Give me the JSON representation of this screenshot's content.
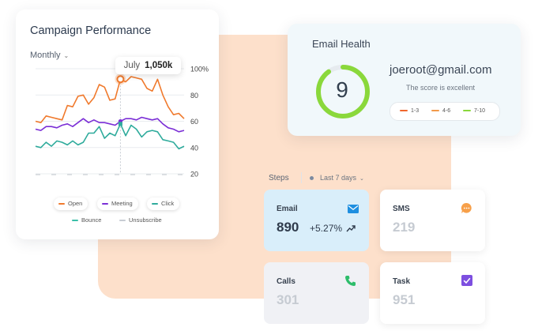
{
  "campaign": {
    "title": "Campaign Performance",
    "period": "Monthly",
    "tooltip_month": "July",
    "tooltip_value": "1,050k",
    "legend": [
      {
        "name": "Open",
        "color": "#f07a2d"
      },
      {
        "name": "Meeting",
        "color": "#7b2fd6"
      },
      {
        "name": "Click",
        "color": "#2fab9c"
      },
      {
        "name": "Bounce",
        "color": "#3bbfa8"
      },
      {
        "name": "Unsubscribe",
        "color": "#c7ccd3"
      }
    ]
  },
  "chart_data": {
    "type": "line",
    "y_ticks": [
      "100%",
      "80",
      "60",
      "40",
      "20"
    ],
    "ylim": [
      20,
      100
    ],
    "series": [
      {
        "name": "Open",
        "color": "#f07a2d",
        "values": [
          60,
          59,
          64,
          63,
          62,
          61,
          72,
          71,
          79,
          80,
          73,
          78,
          88,
          86,
          76,
          77,
          92,
          90,
          94,
          93,
          92,
          85,
          83,
          92,
          80,
          71,
          65,
          66,
          62
        ]
      },
      {
        "name": "Meeting",
        "color": "#7b2fd6",
        "values": [
          54,
          53,
          56,
          56,
          55,
          57,
          58,
          56,
          59,
          62,
          59,
          61,
          59,
          59,
          58,
          57,
          60,
          62,
          62,
          61,
          63,
          62,
          61,
          62,
          58,
          55,
          54,
          52,
          53
        ]
      },
      {
        "name": "Click",
        "color": "#2fab9c",
        "values": [
          41,
          40,
          44,
          41,
          45,
          44,
          42,
          45,
          42,
          44,
          51,
          51,
          56,
          47,
          51,
          49,
          58,
          49,
          57,
          54,
          48,
          52,
          53,
          52,
          46,
          45,
          44,
          39,
          41
        ]
      }
    ],
    "highlight_index": 16,
    "grid": true
  },
  "health": {
    "title": "Email Health",
    "score": "9",
    "score_fraction": 0.9,
    "email": "joeroot@gmail.com",
    "score_text": "The score is excellent",
    "ranges": [
      {
        "label": "1-3",
        "color": "#f0672d"
      },
      {
        "label": "4-6",
        "color": "#f29a4a"
      },
      {
        "label": "7-10",
        "color": "#8ad83b"
      }
    ]
  },
  "steps": {
    "label": "Steps",
    "range": "Last 7 days"
  },
  "tiles": {
    "email": {
      "label": "Email",
      "value": "890",
      "change": "+5.27%",
      "icon": "envelope-icon"
    },
    "sms": {
      "label": "SMS",
      "value": "219",
      "icon": "chat-bubble-icon"
    },
    "calls": {
      "label": "Calls",
      "value": "301",
      "icon": "phone-icon"
    },
    "task": {
      "label": "Task",
      "value": "951",
      "icon": "checkbox-icon"
    }
  }
}
